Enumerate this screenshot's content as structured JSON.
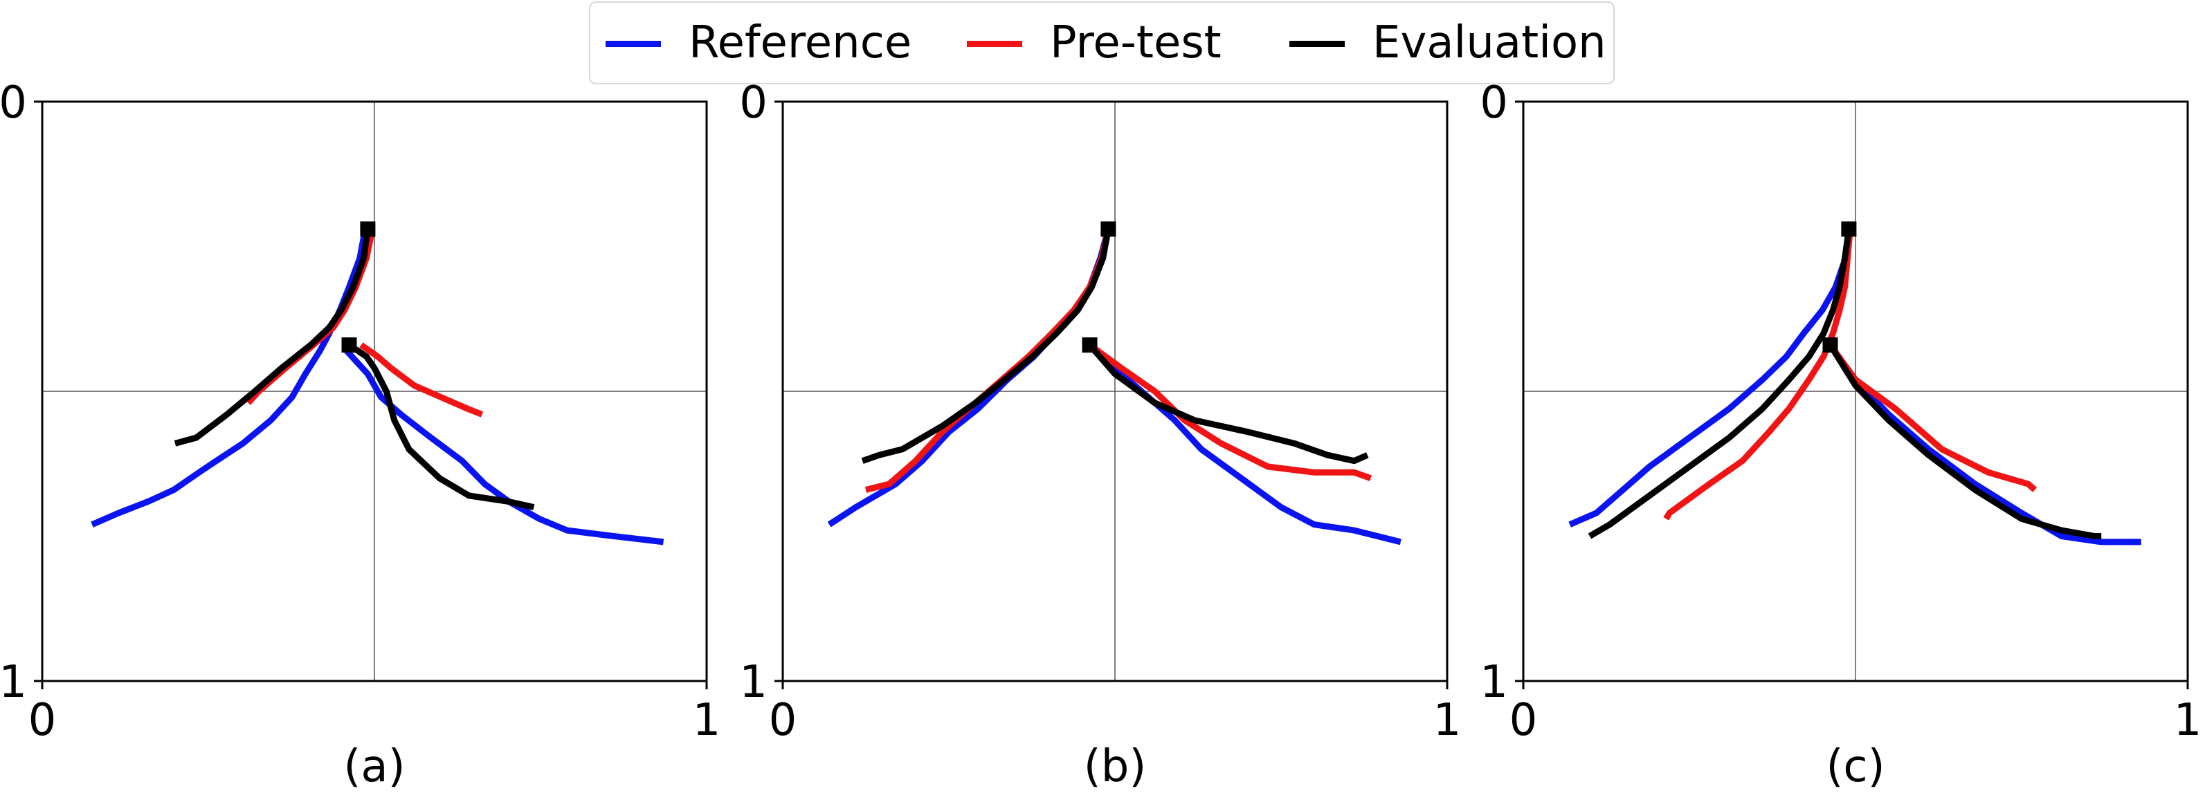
{
  "legend": {
    "items": [
      {
        "label": "Reference",
        "color": "#0a14f0"
      },
      {
        "label": "Pre-test",
        "color": "#f01414"
      },
      {
        "label": "Evaluation",
        "color": "#000000"
      }
    ]
  },
  "chart_data": [
    {
      "type": "line",
      "panel_label": "(a)",
      "xlim": [
        0,
        1
      ],
      "ylim": [
        0,
        1
      ],
      "y_inverted": true,
      "x_tick_labels": [
        "0",
        "1"
      ],
      "y_tick_labels": [
        "0",
        "1"
      ],
      "reference_lines": {
        "x": 0.5,
        "y": 0.5
      },
      "series": [
        {
          "name": "Reference",
          "color": "#0a14f0",
          "segments": [
            [
              [
                0.486,
                0.22
              ],
              [
                0.478,
                0.27
              ],
              [
                0.462,
                0.32
              ],
              [
                0.448,
                0.36
              ],
              [
                0.432,
                0.4
              ],
              [
                0.418,
                0.43
              ],
              [
                0.396,
                0.47
              ],
              [
                0.376,
                0.51
              ],
              [
                0.344,
                0.55
              ],
              [
                0.302,
                0.59
              ],
              [
                0.262,
                0.62
              ],
              [
                0.236,
                0.64
              ],
              [
                0.198,
                0.67
              ],
              [
                0.16,
                0.69
              ],
              [
                0.115,
                0.71
              ],
              [
                0.075,
                0.73
              ]
            ],
            [
              [
                0.458,
                0.43
              ],
              [
                0.49,
                0.47
              ],
              [
                0.51,
                0.51
              ],
              [
                0.54,
                0.54
              ],
              [
                0.585,
                0.58
              ],
              [
                0.632,
                0.62
              ],
              [
                0.666,
                0.66
              ],
              [
                0.702,
                0.69
              ],
              [
                0.748,
                0.72
              ],
              [
                0.79,
                0.74
              ],
              [
                0.86,
                0.75
              ],
              [
                0.935,
                0.76
              ]
            ]
          ]
        },
        {
          "name": "Pre-test",
          "color": "#f01414",
          "segments": [
            [
              [
                0.497,
                0.22
              ],
              [
                0.488,
                0.27
              ],
              [
                0.472,
                0.32
              ],
              [
                0.455,
                0.36
              ],
              [
                0.438,
                0.39
              ],
              [
                0.408,
                0.42
              ],
              [
                0.366,
                0.46
              ],
              [
                0.326,
                0.5
              ],
              [
                0.31,
                0.52
              ]
            ],
            [
              [
                0.48,
                0.42
              ],
              [
                0.505,
                0.44
              ],
              [
                0.525,
                0.46
              ],
              [
                0.56,
                0.49
              ],
              [
                0.6,
                0.51
              ],
              [
                0.64,
                0.53
              ],
              [
                0.662,
                0.54
              ]
            ]
          ]
        },
        {
          "name": "Evaluation",
          "color": "#000000",
          "segments": [
            [
              [
                0.49,
                0.22
              ],
              [
                0.484,
                0.27
              ],
              [
                0.468,
                0.32
              ],
              [
                0.45,
                0.36
              ],
              [
                0.432,
                0.39
              ],
              [
                0.404,
                0.42
              ],
              [
                0.36,
                0.46
              ],
              [
                0.32,
                0.5
              ],
              [
                0.278,
                0.54
              ],
              [
                0.232,
                0.58
              ],
              [
                0.2,
                0.59
              ]
            ],
            [
              [
                0.462,
                0.42
              ],
              [
                0.488,
                0.44
              ],
              [
                0.5,
                0.46
              ],
              [
                0.518,
                0.5
              ],
              [
                0.53,
                0.55
              ],
              [
                0.552,
                0.6
              ],
              [
                0.598,
                0.65
              ],
              [
                0.642,
                0.68
              ],
              [
                0.7,
                0.69
              ],
              [
                0.74,
                0.7
              ]
            ]
          ]
        }
      ],
      "start_markers": [
        [
          0.49,
          0.22
        ],
        [
          0.462,
          0.42
        ]
      ]
    },
    {
      "type": "line",
      "panel_label": "(b)",
      "xlim": [
        0,
        1
      ],
      "ylim": [
        0,
        1
      ],
      "y_inverted": true,
      "x_tick_labels": [
        "0",
        "1"
      ],
      "y_tick_labels": [
        "0",
        "1"
      ],
      "reference_lines": {
        "x": 0.5,
        "y": 0.5
      },
      "series": [
        {
          "name": "Reference",
          "color": "#0a14f0",
          "segments": [
            [
              [
                0.49,
                0.22
              ],
              [
                0.478,
                0.27
              ],
              [
                0.462,
                0.32
              ],
              [
                0.44,
                0.36
              ],
              [
                0.41,
                0.4
              ],
              [
                0.378,
                0.44
              ],
              [
                0.338,
                0.48
              ],
              [
                0.294,
                0.53
              ],
              [
                0.25,
                0.57
              ],
              [
                0.21,
                0.62
              ],
              [
                0.17,
                0.66
              ],
              [
                0.11,
                0.7
              ],
              [
                0.07,
                0.73
              ]
            ],
            [
              [
                0.462,
                0.42
              ],
              [
                0.5,
                0.46
              ],
              [
                0.54,
                0.5
              ],
              [
                0.59,
                0.55
              ],
              [
                0.63,
                0.6
              ],
              [
                0.69,
                0.65
              ],
              [
                0.75,
                0.7
              ],
              [
                0.8,
                0.73
              ],
              [
                0.86,
                0.74
              ],
              [
                0.93,
                0.76
              ]
            ]
          ]
        },
        {
          "name": "Pre-test",
          "color": "#f01414",
          "segments": [
            [
              [
                0.49,
                0.22
              ],
              [
                0.48,
                0.27
              ],
              [
                0.462,
                0.32
              ],
              [
                0.438,
                0.36
              ],
              [
                0.405,
                0.4
              ],
              [
                0.37,
                0.44
              ],
              [
                0.33,
                0.48
              ],
              [
                0.29,
                0.52
              ],
              [
                0.24,
                0.57
              ],
              [
                0.2,
                0.62
              ],
              [
                0.16,
                0.66
              ],
              [
                0.125,
                0.67
              ]
            ],
            [
              [
                0.462,
                0.42
              ],
              [
                0.51,
                0.46
              ],
              [
                0.56,
                0.5
              ],
              [
                0.605,
                0.55
              ],
              [
                0.66,
                0.59
              ],
              [
                0.73,
                0.63
              ],
              [
                0.8,
                0.64
              ],
              [
                0.86,
                0.64
              ],
              [
                0.885,
                0.65
              ]
            ]
          ]
        },
        {
          "name": "Evaluation",
          "color": "#000000",
          "segments": [
            [
              [
                0.49,
                0.22
              ],
              [
                0.482,
                0.27
              ],
              [
                0.465,
                0.32
              ],
              [
                0.444,
                0.36
              ],
              [
                0.412,
                0.4
              ],
              [
                0.376,
                0.44
              ],
              [
                0.334,
                0.48
              ],
              [
                0.29,
                0.52
              ],
              [
                0.24,
                0.56
              ],
              [
                0.18,
                0.6
              ],
              [
                0.145,
                0.61
              ],
              [
                0.12,
                0.62
              ]
            ],
            [
              [
                0.462,
                0.42
              ],
              [
                0.5,
                0.47
              ],
              [
                0.56,
                0.52
              ],
              [
                0.62,
                0.55
              ],
              [
                0.7,
                0.57
              ],
              [
                0.77,
                0.59
              ],
              [
                0.82,
                0.61
              ],
              [
                0.86,
                0.62
              ],
              [
                0.88,
                0.61
              ]
            ]
          ]
        }
      ],
      "start_markers": [
        [
          0.49,
          0.22
        ],
        [
          0.462,
          0.42
        ]
      ]
    },
    {
      "type": "line",
      "panel_label": "(c)",
      "xlim": [
        0,
        1
      ],
      "ylim": [
        0,
        1
      ],
      "y_inverted": true,
      "x_tick_labels": [
        "0",
        "1"
      ],
      "y_tick_labels": [
        "0",
        "1"
      ],
      "reference_lines": {
        "x": 0.5,
        "y": 0.5
      },
      "series": [
        {
          "name": "Reference",
          "color": "#0a14f0",
          "segments": [
            [
              [
                0.482,
                0.28
              ],
              [
                0.47,
                0.32
              ],
              [
                0.45,
                0.36
              ],
              [
                0.422,
                0.4
              ],
              [
                0.396,
                0.44
              ],
              [
                0.36,
                0.48
              ],
              [
                0.31,
                0.53
              ],
              [
                0.25,
                0.58
              ],
              [
                0.19,
                0.63
              ],
              [
                0.15,
                0.67
              ],
              [
                0.11,
                0.71
              ],
              [
                0.07,
                0.73
              ]
            ],
            [
              [
                0.462,
                0.42
              ],
              [
                0.5,
                0.48
              ],
              [
                0.55,
                0.54
              ],
              [
                0.61,
                0.6
              ],
              [
                0.68,
                0.66
              ],
              [
                0.75,
                0.71
              ],
              [
                0.81,
                0.75
              ],
              [
                0.87,
                0.76
              ],
              [
                0.93,
                0.76
              ]
            ]
          ]
        },
        {
          "name": "Pre-test",
          "color": "#f01414",
          "segments": [
            [
              [
                0.492,
                0.22
              ],
              [
                0.488,
                0.27
              ],
              [
                0.484,
                0.32
              ],
              [
                0.476,
                0.36
              ],
              [
                0.466,
                0.4
              ],
              [
                0.452,
                0.44
              ],
              [
                0.43,
                0.48
              ],
              [
                0.4,
                0.53
              ],
              [
                0.37,
                0.57
              ],
              [
                0.33,
                0.62
              ],
              [
                0.28,
                0.66
              ],
              [
                0.22,
                0.71
              ],
              [
                0.215,
                0.72
              ]
            ],
            [
              [
                0.462,
                0.42
              ],
              [
                0.5,
                0.48
              ],
              [
                0.56,
                0.53
              ],
              [
                0.63,
                0.6
              ],
              [
                0.7,
                0.64
              ],
              [
                0.76,
                0.66
              ],
              [
                0.77,
                0.67
              ]
            ]
          ]
        },
        {
          "name": "Evaluation",
          "color": "#000000",
          "segments": [
            [
              [
                0.49,
                0.22
              ],
              [
                0.484,
                0.27
              ],
              [
                0.476,
                0.32
              ],
              [
                0.466,
                0.36
              ],
              [
                0.452,
                0.4
              ],
              [
                0.43,
                0.44
              ],
              [
                0.4,
                0.48
              ],
              [
                0.36,
                0.53
              ],
              [
                0.31,
                0.58
              ],
              [
                0.25,
                0.63
              ],
              [
                0.19,
                0.68
              ],
              [
                0.13,
                0.73
              ],
              [
                0.1,
                0.75
              ]
            ],
            [
              [
                0.462,
                0.42
              ],
              [
                0.5,
                0.49
              ],
              [
                0.55,
                0.55
              ],
              [
                0.61,
                0.61
              ],
              [
                0.68,
                0.67
              ],
              [
                0.75,
                0.72
              ],
              [
                0.81,
                0.74
              ],
              [
                0.86,
                0.75
              ],
              [
                0.87,
                0.75
              ]
            ]
          ]
        }
      ],
      "start_markers": [
        [
          0.49,
          0.22
        ],
        [
          0.462,
          0.42
        ]
      ]
    }
  ]
}
